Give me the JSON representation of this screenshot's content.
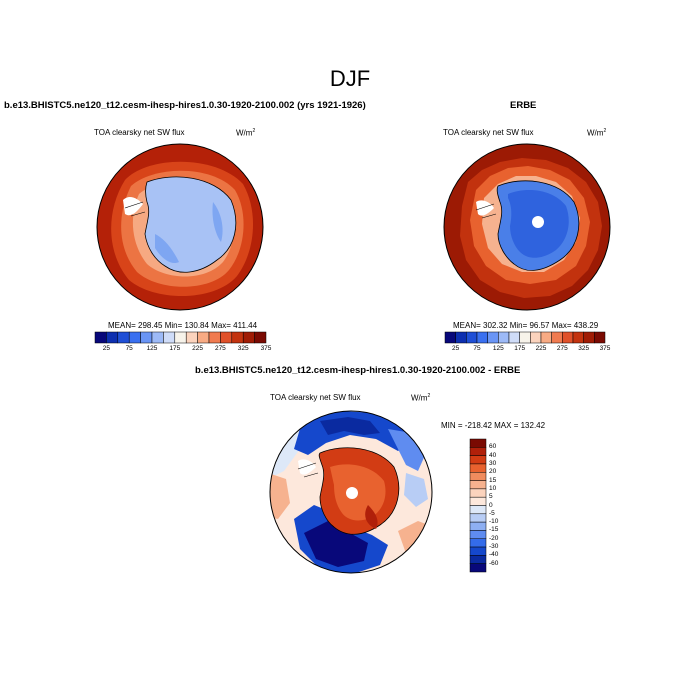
{
  "figure": {
    "season": "DJF",
    "panels": [
      {
        "title": "b.e13.BHISTC5.ne120_t12.cesm-ihesp-hires1.0.30-1920-2100.002 (yrs 1921-1926)",
        "variable": "TOA clearsky net SW flux",
        "units_base": "W/m",
        "units_exp": "2",
        "stats": "MEAN= 298.45  Min= 130.84  Max= 411.44"
      },
      {
        "title": "ERBE",
        "variable": "TOA clearsky net SW flux",
        "units_base": "W/m",
        "units_exp": "2",
        "stats": "MEAN= 302.32  Min=  96.57  Max= 438.29"
      },
      {
        "title": "b.e13.BHISTC5.ne120_t12.cesm-ihesp-hires1.0.30-1920-2100.002 - ERBE",
        "variable": "TOA clearsky net SW flux",
        "units_base": "W/m",
        "units_exp": "2",
        "stats": "MIN = -218.42 MAX = 132.42"
      }
    ],
    "abs_colorbar": {
      "labels": [
        "25",
        "75",
        "125",
        "175",
        "225",
        "275",
        "325",
        "375"
      ],
      "colors": [
        "#08087a",
        "#0d2fb0",
        "#1f4fd6",
        "#3a70f0",
        "#6a95f5",
        "#9dbaf7",
        "#cfdcf8",
        "#f7f3ea",
        "#fbd3bd",
        "#f8ab84",
        "#f07b50",
        "#e0512a",
        "#c3330f",
        "#a01c05",
        "#7a0a02"
      ]
    },
    "diff_colorbar": {
      "labels": [
        "60",
        "40",
        "30",
        "20",
        "15",
        "10",
        "5",
        "0",
        "-5",
        "-10",
        "-15",
        "-20",
        "-30",
        "-40",
        "-60"
      ],
      "colors": [
        "#7a0a02",
        "#b0200a",
        "#d23c14",
        "#e8622f",
        "#f08c5e",
        "#f6b28f",
        "#fbd3bd",
        "#fde8dc",
        "#dde8f8",
        "#b8cdf5",
        "#8eaff2",
        "#5f8cf0",
        "#346cea",
        "#1548cc",
        "#0a2aa0",
        "#08087a"
      ]
    }
  }
}
